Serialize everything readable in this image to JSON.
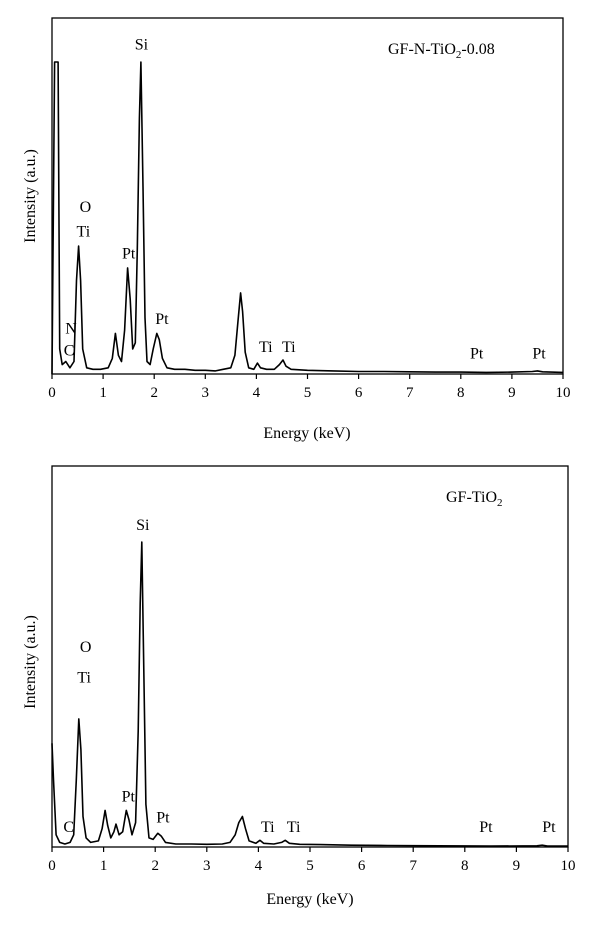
{
  "chart_data": [
    {
      "type": "line",
      "title": "GF-N-TiO",
      "title_sub": "2",
      "title_suffix": "-0.08",
      "xlabel": "Energy (keV)",
      "ylabel": "Intensity (a.u.)",
      "xlim": [
        0,
        10
      ],
      "ylim": [
        0,
        100
      ],
      "xticks": [
        0,
        1,
        2,
        3,
        4,
        5,
        6,
        7,
        8,
        9,
        10
      ],
      "grid": false,
      "spectrum": [
        [
          0.0,
          0
        ],
        [
          0.05,
          100
        ],
        [
          0.12,
          100
        ],
        [
          0.15,
          8
        ],
        [
          0.2,
          3
        ],
        [
          0.27,
          4
        ],
        [
          0.35,
          2
        ],
        [
          0.43,
          4
        ],
        [
          0.48,
          30
        ],
        [
          0.52,
          41
        ],
        [
          0.56,
          30
        ],
        [
          0.6,
          8
        ],
        [
          0.68,
          2
        ],
        [
          0.8,
          1.5
        ],
        [
          0.95,
          1.5
        ],
        [
          1.1,
          2
        ],
        [
          1.18,
          5
        ],
        [
          1.24,
          13
        ],
        [
          1.3,
          6
        ],
        [
          1.36,
          4
        ],
        [
          1.42,
          14
        ],
        [
          1.48,
          34
        ],
        [
          1.53,
          24
        ],
        [
          1.58,
          8
        ],
        [
          1.63,
          10
        ],
        [
          1.67,
          40
        ],
        [
          1.71,
          82
        ],
        [
          1.74,
          100
        ],
        [
          1.78,
          60
        ],
        [
          1.82,
          18
        ],
        [
          1.86,
          4
        ],
        [
          1.92,
          3
        ],
        [
          1.98,
          8
        ],
        [
          2.05,
          13
        ],
        [
          2.1,
          11
        ],
        [
          2.16,
          5
        ],
        [
          2.25,
          2
        ],
        [
          2.4,
          1.5
        ],
        [
          2.6,
          1.5
        ],
        [
          2.8,
          1.2
        ],
        [
          3.0,
          1.2
        ],
        [
          3.2,
          1
        ],
        [
          3.35,
          1.5
        ],
        [
          3.5,
          2
        ],
        [
          3.58,
          6
        ],
        [
          3.64,
          17
        ],
        [
          3.69,
          26
        ],
        [
          3.73,
          20
        ],
        [
          3.78,
          7
        ],
        [
          3.85,
          2
        ],
        [
          3.95,
          1.5
        ],
        [
          4.02,
          3.5
        ],
        [
          4.08,
          2
        ],
        [
          4.2,
          1.5
        ],
        [
          4.35,
          1.5
        ],
        [
          4.45,
          3
        ],
        [
          4.52,
          4.5
        ],
        [
          4.58,
          2.5
        ],
        [
          4.68,
          1.5
        ],
        [
          5.0,
          1.2
        ],
        [
          5.5,
          1
        ],
        [
          6.0,
          0.8
        ],
        [
          6.5,
          0.8
        ],
        [
          7.0,
          0.7
        ],
        [
          7.5,
          0.6
        ],
        [
          8.0,
          0.6
        ],
        [
          8.5,
          0.5
        ],
        [
          9.0,
          0.6
        ],
        [
          9.4,
          0.8
        ],
        [
          9.5,
          1
        ],
        [
          9.6,
          0.7
        ],
        [
          10.0,
          0.5
        ]
      ],
      "peak_labels": [
        {
          "text": "Si",
          "x": 1.62,
          "y": 104
        },
        {
          "text": "O",
          "x": 0.54,
          "y": 52
        },
        {
          "text": "Ti",
          "x": 0.48,
          "y": 44
        },
        {
          "text": "Pt",
          "x": 1.37,
          "y": 37
        },
        {
          "text": "N",
          "x": 0.26,
          "y": 13
        },
        {
          "text": "C",
          "x": 0.23,
          "y": 6
        },
        {
          "text": "Pt",
          "x": 2.02,
          "y": 16
        },
        {
          "text": "Ti",
          "x": 4.05,
          "y": 7
        },
        {
          "text": "Ti",
          "x": 4.5,
          "y": 7
        },
        {
          "text": "Pt",
          "x": 8.18,
          "y": 5
        },
        {
          "text": "Pt",
          "x": 9.4,
          "y": 5
        }
      ]
    },
    {
      "type": "line",
      "title": "GF-TiO",
      "title_sub": "2",
      "title_suffix": "",
      "xlabel": "Energy (keV)",
      "ylabel": "Intensity (a.u.)",
      "xlim": [
        0,
        10
      ],
      "ylim": [
        0,
        100
      ],
      "xticks": [
        0,
        1,
        2,
        3,
        4,
        5,
        6,
        7,
        8,
        9,
        10
      ],
      "grid": false,
      "spectrum": [
        [
          0.0,
          34
        ],
        [
          0.03,
          22
        ],
        [
          0.08,
          4
        ],
        [
          0.15,
          1.5
        ],
        [
          0.25,
          1
        ],
        [
          0.35,
          1.5
        ],
        [
          0.42,
          4
        ],
        [
          0.47,
          22
        ],
        [
          0.52,
          42
        ],
        [
          0.56,
          32
        ],
        [
          0.6,
          10
        ],
        [
          0.66,
          3
        ],
        [
          0.75,
          1.5
        ],
        [
          0.9,
          2
        ],
        [
          0.97,
          6
        ],
        [
          1.03,
          12
        ],
        [
          1.08,
          7
        ],
        [
          1.14,
          3
        ],
        [
          1.2,
          5
        ],
        [
          1.24,
          7.5
        ],
        [
          1.3,
          4
        ],
        [
          1.37,
          5
        ],
        [
          1.44,
          12
        ],
        [
          1.49,
          9
        ],
        [
          1.55,
          4
        ],
        [
          1.62,
          8
        ],
        [
          1.67,
          38
        ],
        [
          1.71,
          80
        ],
        [
          1.74,
          100
        ],
        [
          1.78,
          58
        ],
        [
          1.82,
          14
        ],
        [
          1.88,
          3
        ],
        [
          1.96,
          2.5
        ],
        [
          2.05,
          4.5
        ],
        [
          2.12,
          3.5
        ],
        [
          2.2,
          1.5
        ],
        [
          2.4,
          1
        ],
        [
          2.7,
          1
        ],
        [
          3.0,
          0.9
        ],
        [
          3.3,
          1
        ],
        [
          3.45,
          1.5
        ],
        [
          3.55,
          4
        ],
        [
          3.62,
          8
        ],
        [
          3.69,
          10
        ],
        [
          3.75,
          6
        ],
        [
          3.82,
          2
        ],
        [
          3.95,
          1.2
        ],
        [
          4.03,
          2.2
        ],
        [
          4.1,
          1.2
        ],
        [
          4.3,
          1
        ],
        [
          4.45,
          1.5
        ],
        [
          4.52,
          2.2
        ],
        [
          4.6,
          1.2
        ],
        [
          4.8,
          0.9
        ],
        [
          5.2,
          0.8
        ],
        [
          5.8,
          0.6
        ],
        [
          6.5,
          0.5
        ],
        [
          7.5,
          0.4
        ],
        [
          8.5,
          0.3
        ],
        [
          9.4,
          0.4
        ],
        [
          9.5,
          0.6
        ],
        [
          9.6,
          0.3
        ],
        [
          10.0,
          0.3
        ]
      ],
      "peak_labels": [
        {
          "text": "Si",
          "x": 1.63,
          "y": 104
        },
        {
          "text": "O",
          "x": 0.54,
          "y": 64
        },
        {
          "text": "Ti",
          "x": 0.49,
          "y": 54
        },
        {
          "text": "Pt",
          "x": 1.35,
          "y": 15
        },
        {
          "text": "C",
          "x": 0.22,
          "y": 5
        },
        {
          "text": "Pt",
          "x": 2.02,
          "y": 8
        },
        {
          "text": "Ti",
          "x": 4.05,
          "y": 5
        },
        {
          "text": "Ti",
          "x": 4.55,
          "y": 5
        },
        {
          "text": "Pt",
          "x": 8.28,
          "y": 5
        },
        {
          "text": "Pt",
          "x": 9.5,
          "y": 5
        }
      ]
    }
  ]
}
